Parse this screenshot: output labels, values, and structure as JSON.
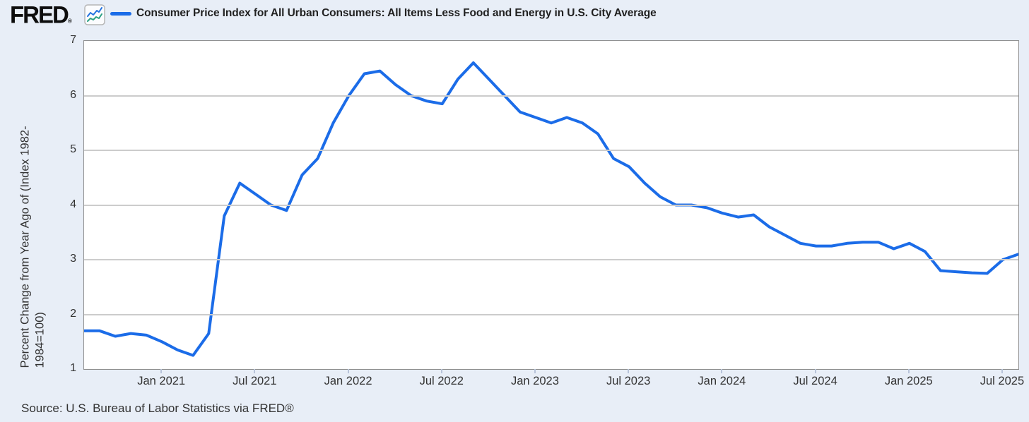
{
  "header": {
    "logo_text": "FRED",
    "registered_mark": "®",
    "legend_label": "Consumer Price Index for All Urban Consumers: All Items Less Food and Energy in U.S. City Average"
  },
  "footer": {
    "source": "Source: U.S. Bureau of Labor Statistics via FRED®"
  },
  "colors": {
    "background": "#e8eef7",
    "line": "#1b6ce8",
    "icon_blue": "#2272e0",
    "icon_teal": "#2aa083",
    "gridline": "#cccccc",
    "plot_border": "#8f8f8f",
    "tick_mark": "#b8c4da",
    "text": "#333333",
    "title_text": "#212121"
  },
  "chart_data": {
    "type": "line",
    "title": "Consumer Price Index for All Urban Consumers: All Items Less Food and Energy in U.S. City Average",
    "series_name": "Consumer Price Index for All Urban Consumers: All Items Less Food and Energy in U.S. City Average",
    "ylabel": "Percent Change from Year Ago of (Index 1982-1984=100)",
    "ylabel_lines": [
      "Percent Change from Year Ago of (Index 1982-",
      "1984=100)"
    ],
    "xlabel": "",
    "ylim": [
      1,
      7
    ],
    "y_ticks": [
      7,
      6,
      5,
      4,
      3,
      2,
      1
    ],
    "grid": "horizontal",
    "legend_position": "top-left",
    "x_tick_labels": [
      "Jan 2021",
      "Jul 2021",
      "Jan 2022",
      "Jul 2022",
      "Jan 2023",
      "Jul 2023",
      "Jan 2024",
      "Jul 2024",
      "Jan 2025",
      "Jul 2025"
    ],
    "x_tick_month_indices": [
      5,
      11,
      17,
      23,
      29,
      35,
      41,
      47,
      53,
      59
    ],
    "x": [
      "2020-08",
      "2020-09",
      "2020-10",
      "2020-11",
      "2020-12",
      "2021-01",
      "2021-02",
      "2021-03",
      "2021-04",
      "2021-05",
      "2021-06",
      "2021-07",
      "2021-08",
      "2021-09",
      "2021-10",
      "2021-11",
      "2021-12",
      "2022-01",
      "2022-02",
      "2022-03",
      "2022-04",
      "2022-05",
      "2022-06",
      "2022-07",
      "2022-08",
      "2022-09",
      "2022-10",
      "2022-11",
      "2022-12",
      "2023-01",
      "2023-02",
      "2023-03",
      "2023-04",
      "2023-05",
      "2023-06",
      "2023-07",
      "2023-08",
      "2023-09",
      "2023-10",
      "2023-11",
      "2023-12",
      "2024-01",
      "2024-02",
      "2024-03",
      "2024-04",
      "2024-05",
      "2024-06",
      "2024-07",
      "2024-08",
      "2024-09",
      "2024-10",
      "2024-11",
      "2024-12",
      "2025-01",
      "2025-02",
      "2025-03",
      "2025-04",
      "2025-05",
      "2025-06",
      "2025-07",
      "2025-08"
    ],
    "values": [
      1.7,
      1.7,
      1.6,
      1.65,
      1.62,
      1.5,
      1.35,
      1.25,
      1.65,
      3.8,
      4.4,
      4.2,
      4.0,
      3.9,
      4.55,
      4.85,
      5.5,
      6.0,
      6.4,
      6.45,
      6.2,
      6.0,
      5.9,
      5.85,
      6.3,
      6.6,
      6.3,
      6.0,
      5.7,
      5.6,
      5.5,
      5.6,
      5.5,
      5.3,
      4.85,
      4.7,
      4.4,
      4.15,
      4.0,
      4.0,
      3.95,
      3.85,
      3.78,
      3.82,
      3.6,
      3.45,
      3.3,
      3.25,
      3.25,
      3.3,
      3.32,
      3.32,
      3.2,
      3.3,
      3.15,
      2.8,
      2.78,
      2.76,
      2.75,
      3.0,
      3.1
    ]
  }
}
